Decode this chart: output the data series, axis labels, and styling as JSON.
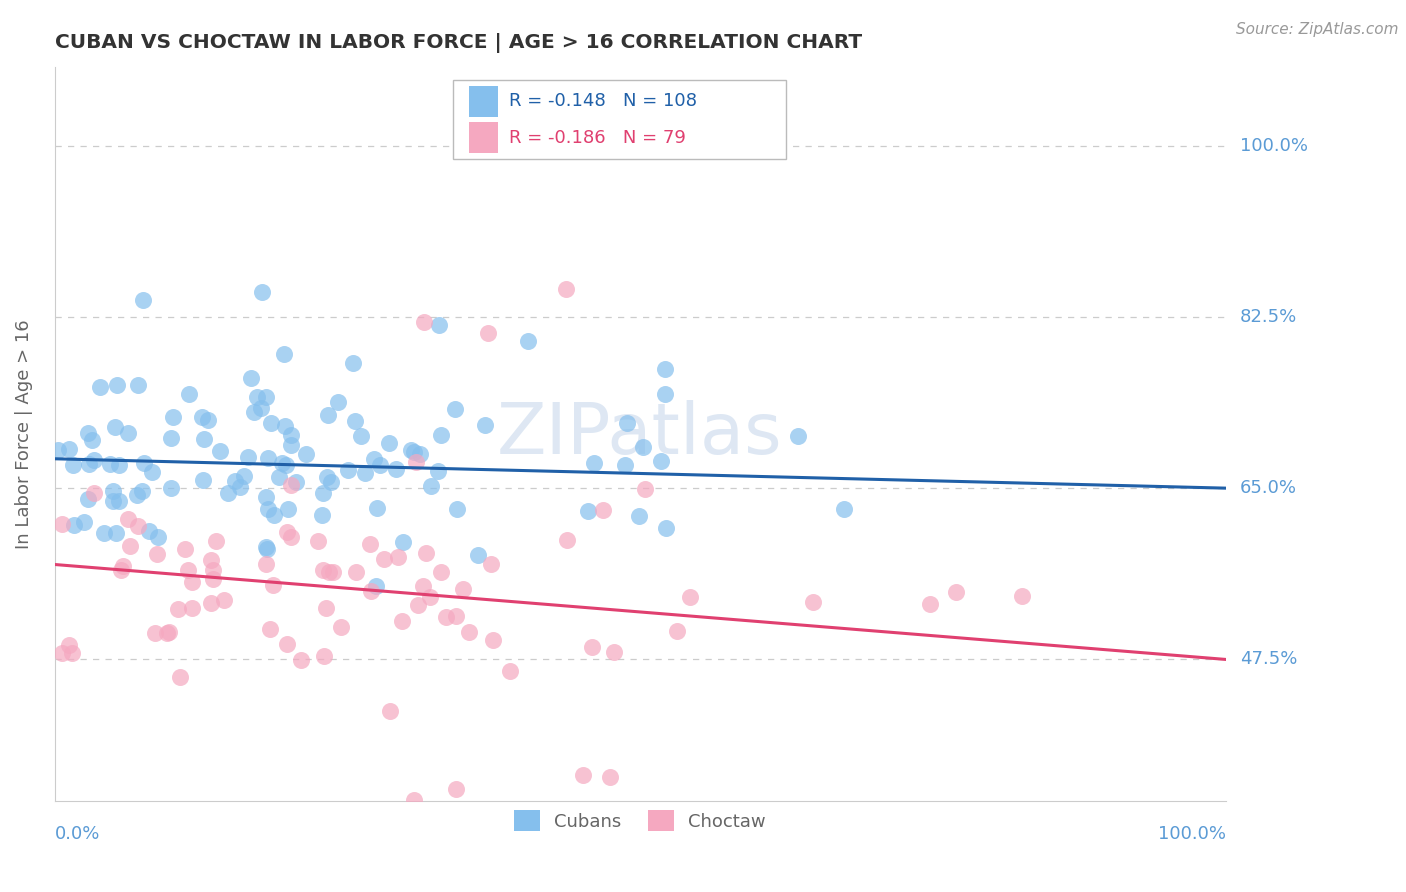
{
  "title": "CUBAN VS CHOCTAW IN LABOR FORCE | AGE > 16 CORRELATION CHART",
  "source_text": "Source: ZipAtlas.com",
  "ylabel": "In Labor Force | Age > 16",
  "xlim": [
    0.0,
    1.0
  ],
  "ylim": [
    0.33,
    1.08
  ],
  "yticks": [
    0.475,
    0.65,
    0.825,
    1.0
  ],
  "ytick_labels": [
    "47.5%",
    "65.0%",
    "82.5%",
    "100.0%"
  ],
  "xticks": [
    0.0,
    1.0
  ],
  "xtick_labels": [
    "0.0%",
    "100.0%"
  ],
  "cubans_R": -0.148,
  "cubans_N": 108,
  "choctaw_R": -0.186,
  "choctaw_N": 79,
  "cubans_color": "#85BFED",
  "cubans_line_color": "#2060A8",
  "choctaw_color": "#F5A8C0",
  "choctaw_line_color": "#E04070",
  "legend_label_cubans": "Cubans",
  "legend_label_choctaw": "Choctaw",
  "background_color": "#FFFFFF",
  "grid_color": "#CCCCCC",
  "title_color": "#333333",
  "axis_label_color": "#666666",
  "right_label_color": "#5B9BD5",
  "cubans_intercept": 0.68,
  "cubans_slope": -0.03,
  "choctaw_intercept": 0.572,
  "choctaw_slope": -0.097,
  "watermark": "ZIPatlas",
  "watermark_color": "#C8D8EC"
}
